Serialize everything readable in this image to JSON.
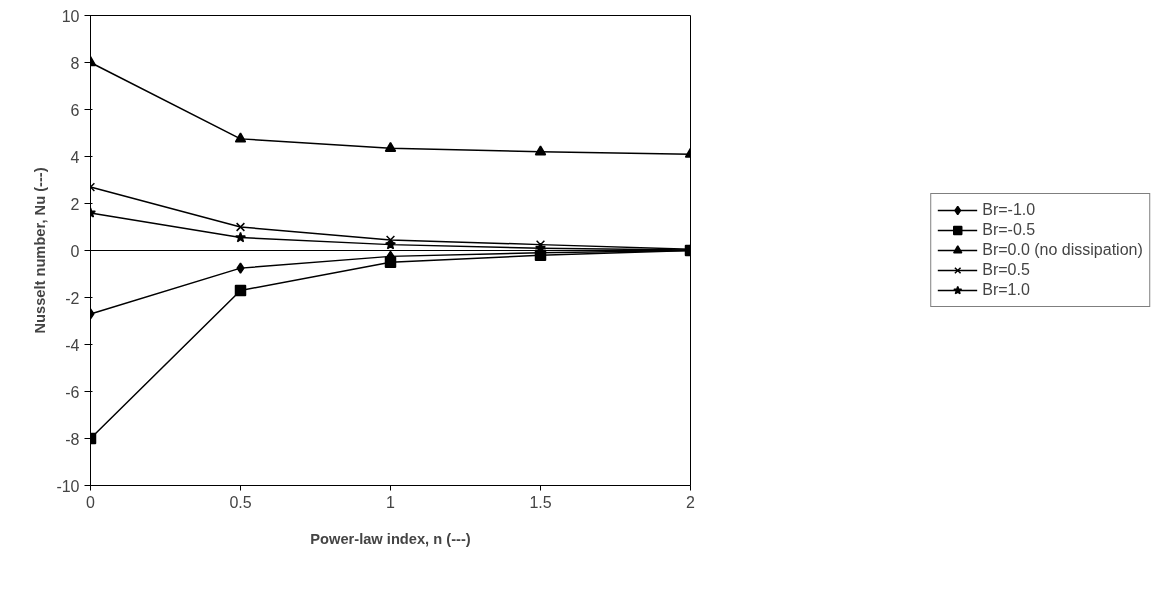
{
  "chart_data": {
    "type": "line",
    "xlabel": "Power-law index, n (---)",
    "ylabel": "Nusselt number, Nu (---)",
    "x": [
      0,
      0.5,
      1,
      1.5,
      2
    ],
    "series": [
      {
        "name": "Br=-1.0",
        "color": "#000000",
        "marker": "diamond",
        "values": [
          -2.7,
          -0.75,
          -0.25,
          -0.1,
          0
        ]
      },
      {
        "name": "Br=-0.5",
        "color": "#000000",
        "marker": "square",
        "values": [
          -8,
          -1.7,
          -0.5,
          -0.2,
          0
        ]
      },
      {
        "name": "Br=0.0 (no dissipation)",
        "color": "#000000",
        "marker": "triangle",
        "values": [
          8,
          4.75,
          4.35,
          4.2,
          4.1
        ]
      },
      {
        "name": "Br=0.5",
        "color": "#000000",
        "marker": "cross",
        "values": [
          2.7,
          1.0,
          0.45,
          0.25,
          0.05
        ]
      },
      {
        "name": "Br=1.0",
        "color": "#000000",
        "marker": "star",
        "values": [
          1.6,
          0.55,
          0.25,
          0.1,
          0.02
        ]
      }
    ],
    "xlim": [
      0,
      2
    ],
    "ylim": [
      -10,
      10
    ],
    "xticks": [
      0,
      0.5,
      1,
      1.5,
      2
    ],
    "yticks": [
      -10,
      -8,
      -6,
      -4,
      -2,
      0,
      2,
      4,
      6,
      8,
      10
    ],
    "ref_lines": [
      {
        "axis": "y",
        "value": 0,
        "color": "#000000"
      }
    ],
    "grid": false,
    "legend": "right",
    "line_style": "solid"
  }
}
